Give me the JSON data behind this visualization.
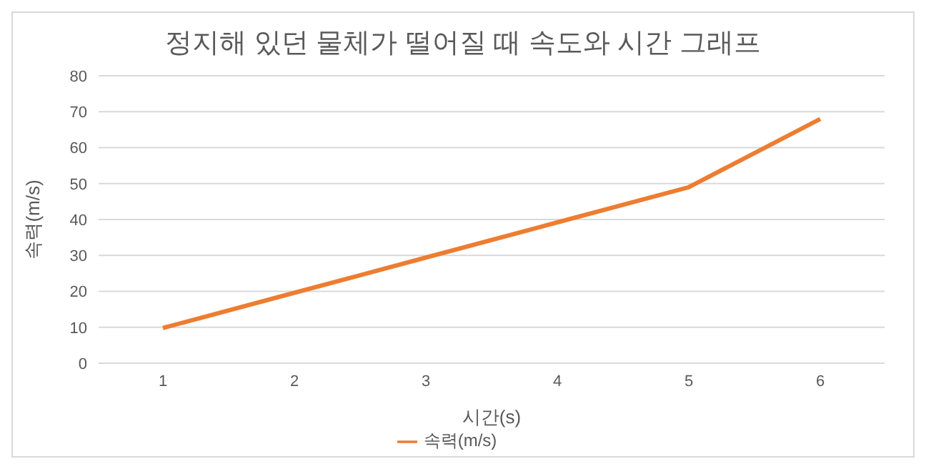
{
  "chart_data": {
    "type": "line",
    "title": "정지해 있던 물체가 떨어질 때 속도와 시간 그래프",
    "xlabel": "시간(s)",
    "ylabel": "속력(m/s)",
    "categories": [
      "1",
      "2",
      "3",
      "4",
      "5",
      "6"
    ],
    "series": [
      {
        "name": "속력(m/s)",
        "color": "#ed7d31",
        "values": [
          9.8,
          19.6,
          29.4,
          39.2,
          49,
          68
        ]
      }
    ],
    "ylim": [
      0,
      80
    ],
    "yticks": [
      0,
      10,
      20,
      30,
      40,
      50,
      60,
      70,
      80
    ],
    "grid": "y",
    "legend": "bottom",
    "marker": "none"
  }
}
